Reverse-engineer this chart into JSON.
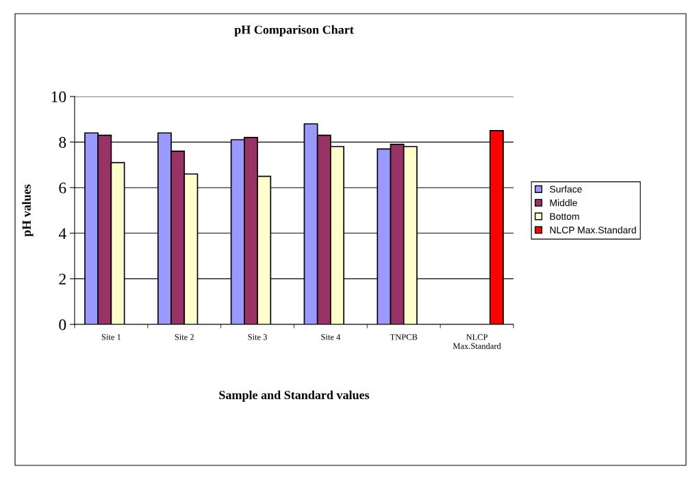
{
  "chart_data": {
    "type": "bar",
    "title": "pH Comparison Chart",
    "xlabel": "Sample and Standard values",
    "ylabel": "pH values",
    "categories": [
      "Site 1",
      "Site 2",
      "Site 3",
      "Site 4",
      "TNPCB",
      "NLCP\nMax.Standard"
    ],
    "series": [
      {
        "name": "Surface",
        "color": "#9999ff",
        "values": [
          8.4,
          8.4,
          8.1,
          8.8,
          7.7,
          null
        ]
      },
      {
        "name": "Middle",
        "color": "#993366",
        "values": [
          8.3,
          7.6,
          8.2,
          8.3,
          7.9,
          null
        ]
      },
      {
        "name": "Bottom",
        "color": "#ffffcc",
        "values": [
          7.1,
          6.6,
          6.5,
          7.8,
          7.8,
          null
        ]
      },
      {
        "name": "NLCP Max.Standard",
        "color": "#ff0000",
        "values": [
          null,
          null,
          null,
          null,
          null,
          8.5
        ]
      }
    ],
    "ylim": [
      0,
      10
    ],
    "yticks": [
      0,
      2,
      4,
      6,
      8,
      10
    ],
    "grid": "y",
    "legend": "right"
  }
}
